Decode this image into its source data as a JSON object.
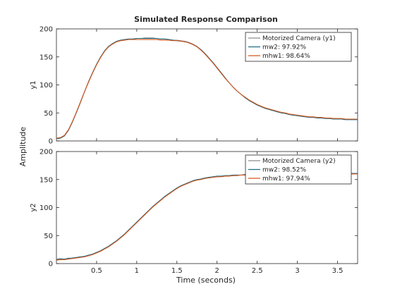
{
  "chart_data": {
    "type": "line",
    "title": "Simulated Response Comparison",
    "xlabel": "Time (seconds)",
    "ylabel": "Amplitude",
    "xlim": [
      0.0,
      3.75
    ],
    "xticks": [
      0.5,
      1,
      1.5,
      2,
      2.5,
      3,
      3.5
    ],
    "xtick_labels": [
      "0.5",
      "1",
      "1.5",
      "2",
      "2.5",
      "3",
      "3.5"
    ],
    "legend_location": "top-right",
    "grid": false,
    "colors": {
      "measured": "#8c8c8c",
      "mw2": "#1a6d86",
      "mhw1": "#d95319"
    },
    "subplots": [
      {
        "ylabel": "y1",
        "ylim": [
          0,
          200
        ],
        "yticks": [
          0,
          50,
          100,
          150,
          200
        ],
        "ytick_labels": [
          "0",
          "50",
          "100",
          "150",
          "200"
        ],
        "x": [
          0.0,
          0.05,
          0.1,
          0.15,
          0.2,
          0.25,
          0.3,
          0.35,
          0.4,
          0.45,
          0.5,
          0.55,
          0.6,
          0.65,
          0.7,
          0.75,
          0.8,
          0.85,
          0.9,
          0.95,
          1.0,
          1.05,
          1.1,
          1.15,
          1.2,
          1.25,
          1.3,
          1.35,
          1.4,
          1.45,
          1.5,
          1.55,
          1.6,
          1.65,
          1.7,
          1.75,
          1.8,
          1.85,
          1.9,
          1.95,
          2.0,
          2.05,
          2.1,
          2.15,
          2.2,
          2.25,
          2.3,
          2.35,
          2.4,
          2.45,
          2.5,
          2.55,
          2.6,
          2.65,
          2.7,
          2.75,
          2.8,
          2.85,
          2.9,
          2.95,
          3.0,
          3.05,
          3.1,
          3.15,
          3.2,
          3.25,
          3.3,
          3.35,
          3.4,
          3.45,
          3.5,
          3.55,
          3.6,
          3.65,
          3.7,
          3.75
        ],
        "series": [
          {
            "name": "Motorized Camera (y1)",
            "values": [
              5,
              6,
              10,
              20,
              35,
              52,
              70,
              88,
              105,
              122,
              137,
              150,
              161,
              169,
              174,
              177,
              179,
              180,
              181,
              182,
              183,
              183,
              184,
              184,
              184,
              183,
              182,
              182,
              181,
              180,
              180,
              179,
              178,
              176,
              173,
              169,
              163,
              156,
              148,
              139,
              130,
              121,
              112,
              104,
              96,
              89,
              83,
              78,
              73,
              69,
              65,
              62,
              59,
              57,
              55,
              53,
              51,
              50,
              48,
              47,
              46,
              45,
              44,
              43,
              43,
              42,
              42,
              41,
              41,
              40,
              40,
              40,
              39,
              39,
              39,
              39
            ]
          },
          {
            "name": "mw2: 97.92%",
            "values": [
              4,
              5,
              9,
              19,
              34,
              51,
              69,
              88,
              106,
              122,
              137,
              150,
              161,
              169,
              174,
              178,
              180,
              181,
              182,
              182,
              183,
              183,
              183,
              183,
              183,
              183,
              182,
              182,
              181,
              180,
              179,
              178,
              177,
              175,
              172,
              168,
              163,
              156,
              148,
              140,
              131,
              122,
              113,
              104,
              96,
              89,
              83,
              77,
              72,
              68,
              64,
              61,
              58,
              56,
              54,
              52,
              50,
              49,
              47,
              46,
              45,
              44,
              43,
              42,
              42,
              41,
              41,
              40,
              40,
              39,
              39,
              39,
              38,
              38,
              38,
              38
            ]
          },
          {
            "name": "mhw1: 98.64%",
            "values": [
              5,
              6,
              10,
              20,
              35,
              52,
              70,
              88,
              105,
              121,
              136,
              149,
              160,
              168,
              173,
              177,
              179,
              180,
              181,
              181,
              181,
              181,
              181,
              181,
              181,
              181,
              180,
              180,
              180,
              179,
              179,
              178,
              177,
              175,
              172,
              168,
              162,
              155,
              147,
              139,
              130,
              121,
              112,
              104,
              96,
              89,
              83,
              78,
              73,
              69,
              65,
              62,
              59,
              57,
              55,
              53,
              51,
              50,
              48,
              47,
              46,
              45,
              44,
              43,
              43,
              42,
              42,
              41,
              41,
              40,
              40,
              40,
              39,
              39,
              39,
              39
            ]
          }
        ]
      },
      {
        "ylabel": "y2",
        "ylim": [
          0,
          200
        ],
        "yticks": [
          0,
          50,
          100,
          150,
          200
        ],
        "ytick_labels": [
          "0",
          "50",
          "100",
          "150",
          "200"
        ],
        "x": [
          0.0,
          0.05,
          0.1,
          0.15,
          0.2,
          0.25,
          0.3,
          0.35,
          0.4,
          0.45,
          0.5,
          0.55,
          0.6,
          0.65,
          0.7,
          0.75,
          0.8,
          0.85,
          0.9,
          0.95,
          1.0,
          1.05,
          1.1,
          1.15,
          1.2,
          1.25,
          1.3,
          1.35,
          1.4,
          1.45,
          1.5,
          1.55,
          1.6,
          1.65,
          1.7,
          1.75,
          1.8,
          1.85,
          1.9,
          1.95,
          2.0,
          2.05,
          2.1,
          2.15,
          2.2,
          2.25,
          2.3,
          2.35,
          2.4,
          2.45,
          2.5,
          2.55,
          2.6,
          2.65,
          2.7,
          2.75,
          2.8,
          2.85,
          2.9,
          2.95,
          3.0,
          3.05,
          3.1,
          3.15,
          3.2,
          3.25,
          3.3,
          3.35,
          3.4,
          3.45,
          3.5,
          3.55,
          3.6,
          3.65,
          3.7,
          3.75
        ],
        "series": [
          {
            "name": "Motorized Camera (y2)",
            "values": [
              8,
              9,
              8,
              10,
              9,
              11,
              12,
              13,
              15,
              17,
              20,
              23,
              27,
              31,
              36,
              41,
              47,
              53,
              60,
              67,
              74,
              81,
              88,
              95,
              102,
              108,
              114,
              120,
              125,
              130,
              135,
              139,
              142,
              145,
              147,
              149,
              151,
              152,
              153,
              154,
              155,
              156,
              156,
              157,
              157,
              158,
              158,
              158,
              159,
              159,
              159,
              160,
              160,
              160,
              160,
              160,
              160,
              161,
              161,
              161,
              161,
              161,
              161,
              161,
              161,
              161,
              161,
              161,
              161,
              161,
              161,
              161,
              161,
              161,
              161,
              161
            ]
          },
          {
            "name": "mw2: 98.52%",
            "values": [
              7,
              8,
              8,
              9,
              10,
              11,
              12,
              13,
              15,
              17,
              20,
              23,
              27,
              31,
              36,
              41,
              47,
              53,
              60,
              67,
              74,
              81,
              88,
              95,
              102,
              108,
              114,
              120,
              125,
              130,
              135,
              139,
              142,
              145,
              148,
              150,
              151,
              153,
              154,
              155,
              156,
              156,
              157,
              157,
              158,
              158,
              158,
              159,
              159,
              159,
              159,
              160,
              160,
              160,
              160,
              160,
              160,
              160,
              161,
              161,
              161,
              161,
              161,
              161,
              161,
              161,
              161,
              161,
              161,
              161,
              161,
              161,
              161,
              161,
              161,
              161
            ]
          },
          {
            "name": "mhw1: 97.94%",
            "values": [
              6,
              7,
              7,
              8,
              9,
              10,
              11,
              12,
              14,
              16,
              19,
              22,
              26,
              30,
              35,
              40,
              46,
              52,
              59,
              66,
              73,
              80,
              87,
              94,
              101,
              107,
              113,
              119,
              124,
              129,
              134,
              138,
              141,
              144,
              147,
              149,
              150,
              152,
              153,
              154,
              155,
              155,
              156,
              156,
              157,
              157,
              158,
              158,
              158,
              158,
              159,
              159,
              159,
              159,
              159,
              160,
              160,
              160,
              160,
              160,
              160,
              160,
              160,
              160,
              160,
              160,
              160,
              160,
              160,
              160,
              160,
              160,
              160,
              160,
              160,
              160
            ]
          }
        ]
      }
    ]
  }
}
